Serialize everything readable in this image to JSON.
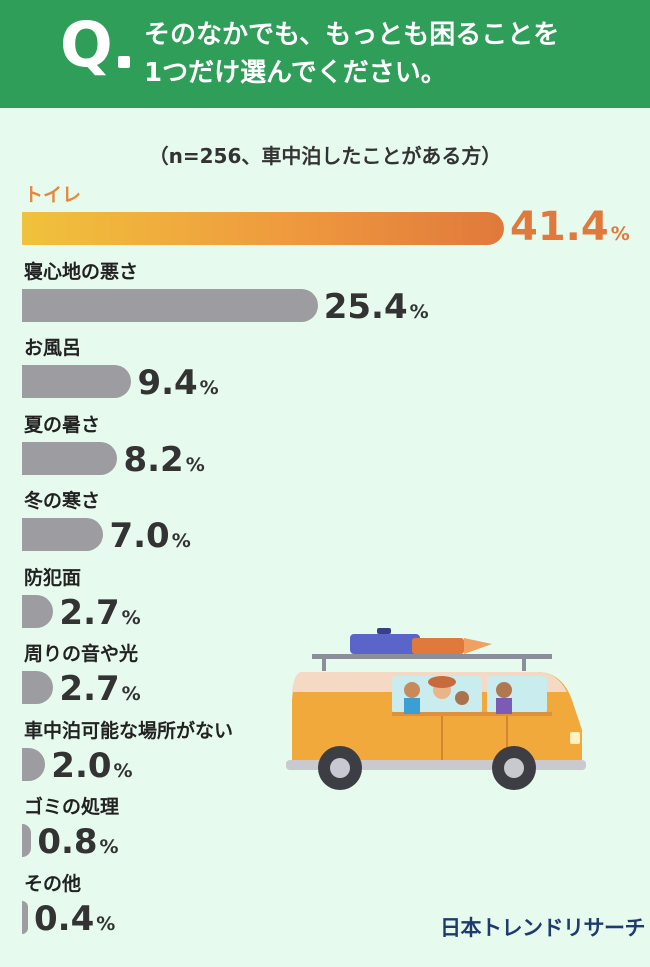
{
  "question": {
    "mark": "Q",
    "line1": "そのなかでも、もっとも困ることを",
    "line2": "1つだけ選んでください。"
  },
  "subtitle": "（n=256、車中泊したことがある方）",
  "brand": "日本トレンドリサーチ",
  "colors": {
    "header": "#2e9e58",
    "bar": "#9c9ca1",
    "top_bar": "#e0793c",
    "top_label": "#e8863a",
    "background": "#e6faee"
  },
  "chart_data": {
    "type": "bar",
    "orientation": "horizontal",
    "unit": "%",
    "categories": [
      "トイレ",
      "寝心地の悪さ",
      "お風呂",
      "夏の暑さ",
      "冬の寒さ",
      "防犯面",
      "周りの音や光",
      "車中泊可能な場所がない",
      "ゴミの処理",
      "その他"
    ],
    "values": [
      41.4,
      25.4,
      9.4,
      8.2,
      7.0,
      2.7,
      2.7,
      2.0,
      0.8,
      0.4
    ],
    "labels": [
      "41.4",
      "25.4",
      "9.4",
      "8.2",
      "7.0",
      "2.7",
      "2.7",
      "2.0",
      "0.8",
      "0.4"
    ]
  }
}
